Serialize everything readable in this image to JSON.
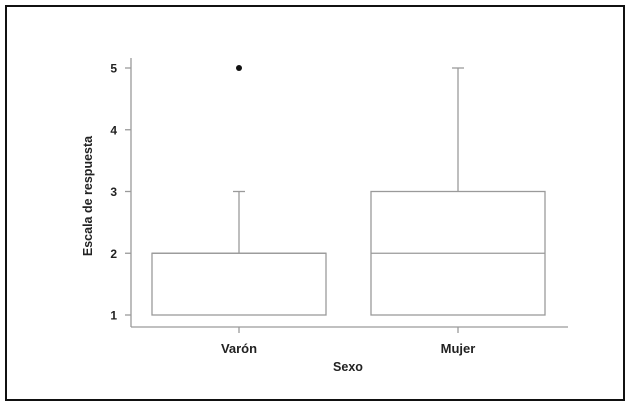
{
  "chart_data": {
    "type": "box",
    "xlabel": "Sexo",
    "ylabel": "Escala de respuesta",
    "categories": [
      "Varón",
      "Mujer"
    ],
    "yticks": [
      1,
      2,
      3,
      4,
      5
    ],
    "ylim": [
      0.85,
      5.1
    ],
    "boxes": [
      {
        "category": "Varón",
        "whisker_low": 1,
        "q1": 1,
        "median": 2,
        "q3": 2,
        "whisker_high": 3,
        "outliers": [
          5
        ]
      },
      {
        "category": "Mujer",
        "whisker_low": 1,
        "q1": 1,
        "median": 2,
        "q3": 3,
        "whisker_high": 5,
        "outliers": []
      }
    ],
    "grid": false,
    "legend": "none"
  }
}
